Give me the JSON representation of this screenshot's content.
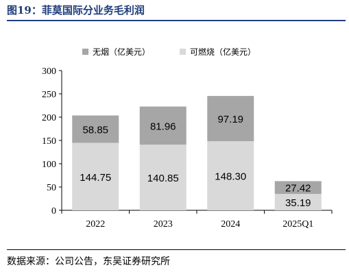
{
  "figure": {
    "title": "图19：菲莫国际分业务毛利润",
    "source": "数据来源：公司公告，东吴证券研究所"
  },
  "colors": {
    "title": "#1f3d7a",
    "series_tobacco": "#a6a6a6",
    "series_combustible": "#d9d9d9"
  },
  "chart_data": {
    "type": "bar",
    "stacked": true,
    "categories": [
      "2022",
      "2023",
      "2024",
      "2025Q1"
    ],
    "series": [
      {
        "name": "可燃烧（亿美元）",
        "values": [
          144.75,
          140.85,
          148.3,
          35.19
        ]
      },
      {
        "name": "无烟（亿美元）",
        "values": [
          58.85,
          81.96,
          97.19,
          27.42
        ]
      }
    ],
    "data_labels": [
      [
        "144.75",
        "140.85",
        "148.30",
        "35.19"
      ],
      [
        "58.85",
        "81.96",
        "97.19",
        "27.42"
      ]
    ],
    "yticks": [
      "0",
      "50",
      "100",
      "150",
      "200",
      "250",
      "300"
    ],
    "ylim": [
      0,
      300
    ],
    "legend_position": "top-center",
    "grid": false
  }
}
